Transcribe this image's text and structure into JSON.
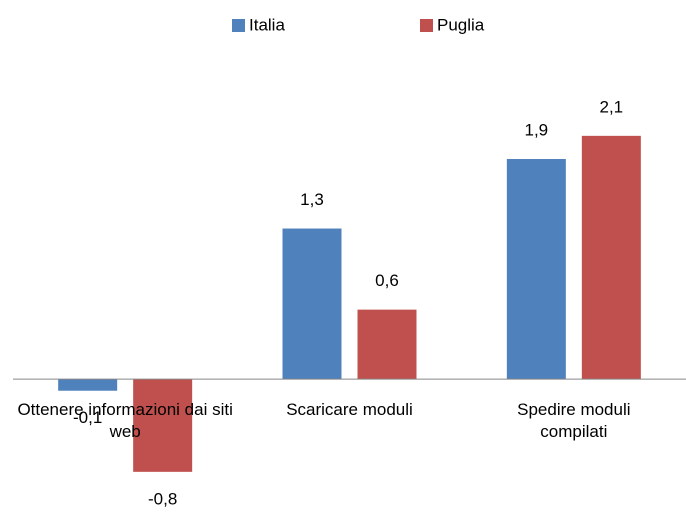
{
  "chart_data": {
    "type": "bar",
    "categories": [
      "Ottenere informazioni dai siti web",
      "Scaricare moduli",
      "Spedire moduli compilati"
    ],
    "series": [
      {
        "name": "Italia",
        "color": "#4f81bd",
        "values": [
          -0.1,
          1.3,
          1.9
        ],
        "value_labels": [
          "-0,1",
          "1,3",
          "1,9"
        ]
      },
      {
        "name": "Puglia",
        "color": "#c0504d",
        "values": [
          -0.8,
          0.6,
          2.1
        ],
        "value_labels": [
          "-0,8",
          "0,6",
          "2,1"
        ]
      }
    ],
    "ylim": [
      -1,
      2.5
    ],
    "legend": "top"
  }
}
